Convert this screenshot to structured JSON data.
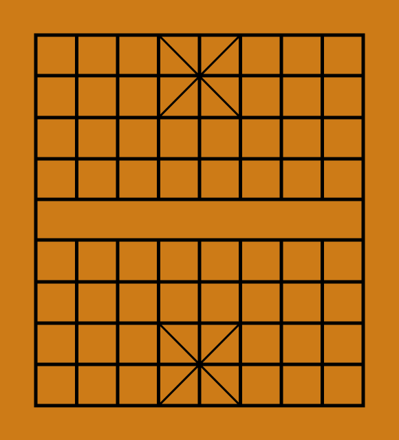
{
  "board": {
    "game": "xiangqi",
    "files": 9,
    "ranks": 10,
    "river_between_ranks": [
      4,
      5
    ],
    "palaces": [
      {
        "side": "top",
        "files": [
          3,
          5
        ],
        "ranks": [
          0,
          2
        ]
      },
      {
        "side": "bottom",
        "files": [
          3,
          5
        ],
        "ranks": [
          7,
          9
        ]
      }
    ],
    "pieces": []
  },
  "colors": {
    "board": "#CD7B17",
    "lines": "#000000"
  }
}
